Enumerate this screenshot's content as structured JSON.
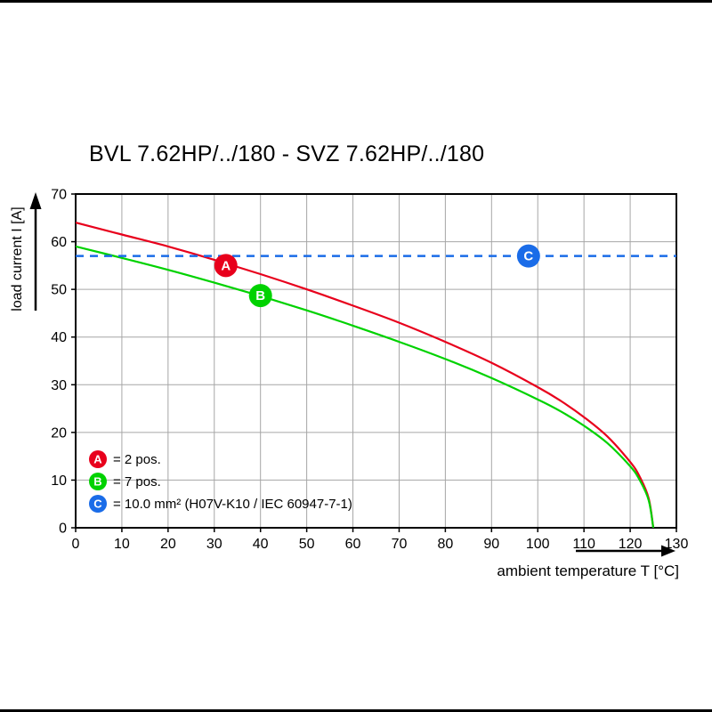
{
  "title": "BVL 7.62HP/../180 - SVZ 7.62HP/../180",
  "chart_data": {
    "type": "line",
    "title": "BVL 7.62HP/../180 - SVZ 7.62HP/../180",
    "xlabel": "ambient temperature T [°C]",
    "ylabel": "load current I [A]",
    "xlim": [
      0,
      130
    ],
    "ylim": [
      0,
      70
    ],
    "x_ticks": [
      0,
      10,
      20,
      30,
      40,
      50,
      60,
      70,
      80,
      90,
      100,
      110,
      120,
      130
    ],
    "y_ticks": [
      0,
      10,
      20,
      30,
      40,
      50,
      60,
      70
    ],
    "grid": true,
    "grid_color": "#a6a6a6",
    "axis_color": "#000000",
    "legend_position": "inside bottom-left",
    "series": [
      {
        "id": "A",
        "name": "2 pos.",
        "legend": "= 2 pos.",
        "color": "#e8001c",
        "style": "solid",
        "x": [
          0,
          10,
          20,
          30,
          40,
          50,
          60,
          70,
          80,
          90,
          100,
          105,
          110,
          115,
          120,
          122,
          124,
          125
        ],
        "y": [
          64,
          61.5,
          59,
          56.2,
          53.2,
          50,
          46.6,
          43,
          39,
          34.6,
          29.5,
          26.6,
          23.2,
          19.2,
          13.8,
          10.8,
          6.2,
          0
        ],
        "marker": {
          "x": 32.5,
          "y": 55
        }
      },
      {
        "id": "B",
        "name": "7 pos.",
        "legend": "= 7 pos.",
        "color": "#00d200",
        "style": "solid",
        "x": [
          0,
          10,
          20,
          30,
          40,
          50,
          60,
          70,
          80,
          90,
          100,
          105,
          110,
          115,
          120,
          122,
          124,
          125
        ],
        "y": [
          59,
          56.6,
          54.1,
          51.4,
          48.6,
          45.6,
          42.4,
          39,
          35.4,
          31.4,
          26.9,
          24.4,
          21.4,
          17.8,
          12.9,
          10.1,
          5.8,
          0
        ],
        "marker": {
          "x": 40,
          "y": 48.7
        }
      },
      {
        "id": "C",
        "name": "10.0 mm² (H07V-K10 / IEC 60947-7-1)",
        "legend": "= 10.0 mm² (H07V-K10 / IEC 60947-7-1)",
        "color": "#1a6ce8",
        "style": "dashed",
        "x": [
          0,
          130
        ],
        "y": [
          57,
          57
        ],
        "marker": {
          "x": 98,
          "y": 57
        }
      }
    ]
  }
}
